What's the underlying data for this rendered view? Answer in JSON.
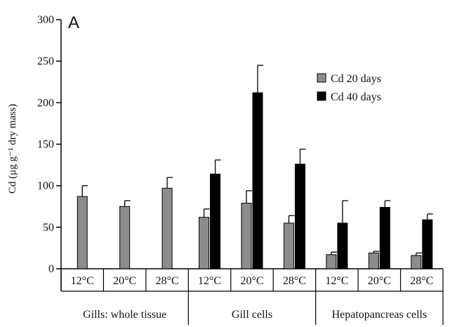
{
  "chart_data": {
    "type": "bar",
    "panel_label": "A",
    "ylabel": "Cd (μg g⁻¹ dry mass)",
    "xlabel": "",
    "ylim": [
      0,
      300
    ],
    "yticks": [
      0,
      50,
      100,
      150,
      200,
      250,
      300
    ],
    "categories": [
      "12°C",
      "20°C",
      "28°C",
      "12°C",
      "20°C",
      "28°C",
      "12°C",
      "20°C",
      "28°C"
    ],
    "groups": [
      {
        "label": "Gills: whole tissue",
        "span": [
          0,
          2
        ]
      },
      {
        "label": "Gill cells",
        "span": [
          3,
          5
        ]
      },
      {
        "label": "Hepatopancreas cells",
        "span": [
          6,
          8
        ]
      }
    ],
    "series": [
      {
        "name": "Cd 20 days",
        "color": "#8c8c8c",
        "values": [
          87,
          75,
          97,
          62,
          79,
          55,
          17,
          19,
          16
        ],
        "errors": [
          13,
          7,
          13,
          10,
          15,
          9,
          3,
          2,
          3
        ]
      },
      {
        "name": "Cd 40 days",
        "color": "#000000",
        "values": [
          null,
          null,
          null,
          114,
          212,
          126,
          55,
          74,
          59
        ],
        "errors": [
          null,
          null,
          null,
          17,
          33,
          18,
          27,
          8,
          7
        ]
      }
    ],
    "legend_position": "upper-right",
    "grid": false
  }
}
